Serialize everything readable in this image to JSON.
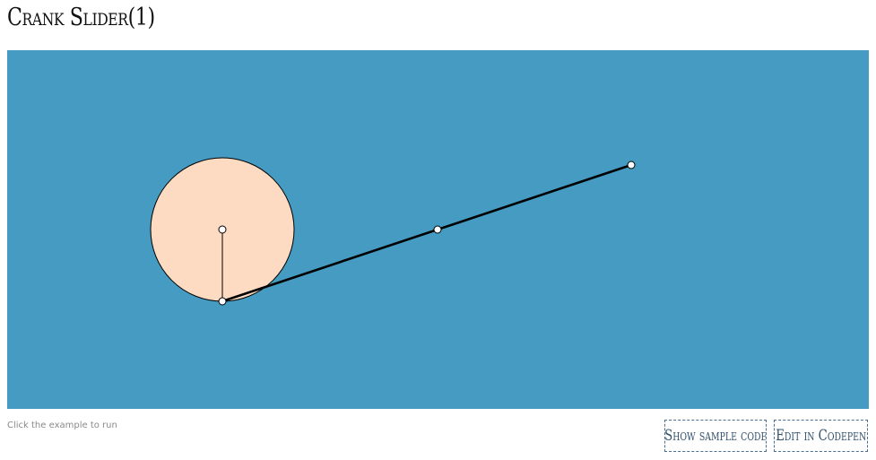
{
  "page": {
    "title": "Crank Slider(1)"
  },
  "example": {
    "background_color": "#459bc2",
    "crank_disc_color": "#fcdbc2",
    "link_color": "#000000",
    "joint_color": "#ffffff",
    "hint": "Click the example to run"
  },
  "actions": {
    "show_sample_code_label": "Show sample code",
    "edit_in_codepen_label": "Edit in Codepen"
  }
}
